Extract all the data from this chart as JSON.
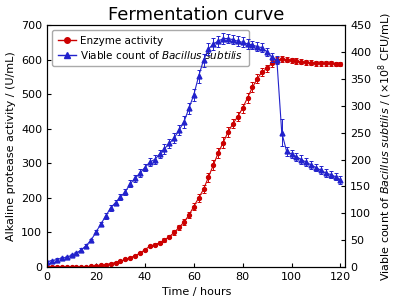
{
  "title": "Fermentation curve",
  "xlabel": "Time / hours",
  "ylabel_left": "Alkaline protease activity / (U/mL)",
  "ylabel_right": "Viable count of Bacillus subtilis / (×10⁸ CFU/mL)",
  "legend_enzyme": "Enzyme activity",
  "xlim": [
    0,
    122
  ],
  "ylim_left": [
    0,
    700
  ],
  "ylim_right": [
    0,
    450
  ],
  "xticks": [
    0,
    20,
    40,
    60,
    80,
    100,
    120
  ],
  "yticks_left": [
    0,
    100,
    200,
    300,
    400,
    500,
    600,
    700
  ],
  "yticks_right": [
    0,
    50,
    100,
    150,
    200,
    250,
    300,
    350,
    400,
    450
  ],
  "enzyme_x": [
    0,
    2,
    4,
    6,
    8,
    10,
    12,
    14,
    16,
    18,
    20,
    22,
    24,
    26,
    28,
    30,
    32,
    34,
    36,
    38,
    40,
    42,
    44,
    46,
    48,
    50,
    52,
    54,
    56,
    58,
    60,
    62,
    64,
    66,
    68,
    70,
    72,
    74,
    76,
    78,
    80,
    82,
    84,
    86,
    88,
    90,
    92,
    94,
    96,
    98,
    100,
    102,
    104,
    106,
    108,
    110,
    112,
    114,
    116,
    118,
    120
  ],
  "enzyme_y": [
    0,
    0,
    0,
    0,
    0,
    0,
    0,
    0,
    0,
    2,
    4,
    5,
    7,
    10,
    13,
    17,
    22,
    27,
    33,
    40,
    50,
    60,
    65,
    70,
    78,
    88,
    100,
    115,
    130,
    150,
    175,
    200,
    225,
    260,
    295,
    330,
    360,
    390,
    415,
    435,
    460,
    490,
    520,
    545,
    565,
    575,
    590,
    598,
    602,
    600,
    598,
    596,
    594,
    592,
    591,
    590,
    590,
    589,
    589,
    588,
    588
  ],
  "enzyme_err": [
    0,
    0,
    0,
    0,
    0,
    0,
    0,
    0,
    0,
    1,
    1,
    1,
    1,
    1,
    1,
    2,
    2,
    2,
    2,
    3,
    3,
    3,
    4,
    4,
    5,
    5,
    6,
    7,
    8,
    9,
    10,
    11,
    12,
    13,
    14,
    15,
    16,
    15,
    14,
    13,
    13,
    14,
    14,
    13,
    12,
    11,
    10,
    9,
    8,
    8,
    8,
    8,
    7,
    7,
    7,
    7,
    7,
    6,
    6,
    6,
    6
  ],
  "viable_x": [
    0,
    2,
    4,
    6,
    8,
    10,
    12,
    14,
    16,
    18,
    20,
    22,
    24,
    26,
    28,
    30,
    32,
    34,
    36,
    38,
    40,
    42,
    44,
    46,
    48,
    50,
    52,
    54,
    56,
    58,
    60,
    62,
    64,
    66,
    68,
    70,
    72,
    74,
    76,
    78,
    80,
    82,
    84,
    86,
    88,
    90,
    92,
    94,
    96,
    98,
    100,
    102,
    104,
    106,
    108,
    110,
    112,
    114,
    116,
    118,
    120
  ],
  "viable_y": [
    10,
    12,
    14,
    16,
    18,
    22,
    26,
    32,
    40,
    50,
    65,
    80,
    95,
    110,
    120,
    130,
    140,
    155,
    165,
    175,
    185,
    195,
    200,
    210,
    220,
    230,
    240,
    255,
    270,
    295,
    320,
    355,
    385,
    405,
    415,
    420,
    425,
    425,
    423,
    420,
    418,
    415,
    413,
    410,
    408,
    400,
    390,
    385,
    250,
    215,
    210,
    205,
    200,
    195,
    190,
    185,
    180,
    175,
    172,
    168,
    162
  ],
  "viable_err": [
    2,
    2,
    2,
    2,
    2,
    2,
    2,
    3,
    3,
    3,
    4,
    4,
    5,
    5,
    5,
    6,
    6,
    6,
    7,
    7,
    7,
    8,
    8,
    8,
    9,
    9,
    10,
    10,
    11,
    11,
    12,
    12,
    12,
    11,
    11,
    10,
    10,
    9,
    9,
    9,
    9,
    9,
    8,
    8,
    8,
    8,
    8,
    8,
    25,
    8,
    8,
    8,
    8,
    8,
    8,
    7,
    7,
    7,
    7,
    7,
    7
  ],
  "enzyme_color": "#cc0000",
  "viable_color": "#2222cc",
  "bg_color": "#ffffff",
  "title_fontsize": 13,
  "axis_fontsize": 8,
  "tick_fontsize": 8,
  "legend_fontsize": 7.5
}
